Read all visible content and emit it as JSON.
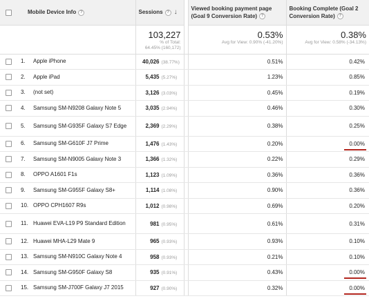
{
  "headers": {
    "device": "Mobile Device Info",
    "sessions": "Sessions",
    "goal9": "Viewed booking payment page (Goal 9 Conversion Rate)",
    "goal2": "Booking Complete (Goal 2 Conversion Rate)"
  },
  "icons": {
    "help": "question-mark-circle-icon",
    "sort": "arrow-down-icon"
  },
  "summary": {
    "sessions_total": "103,227",
    "sessions_sub1": "% of Total:",
    "sessions_sub2": "64.45% (160,172)",
    "goal9_rate": "0.53%",
    "goal9_sub": "Avg for View: 0.90% (-41.20%)",
    "goal2_rate": "0.38%",
    "goal2_sub": "Avg for View: 0.58% (-34.13%)"
  },
  "rows": [
    {
      "num": "1.",
      "device": "Apple iPhone",
      "sessions": "40,026",
      "pct": "(38.77%)",
      "goal9": "0.51%",
      "goal2": "0.42%"
    },
    {
      "num": "2.",
      "device": "Apple iPad",
      "sessions": "5,435",
      "pct": "(5.27%)",
      "goal9": "1.23%",
      "goal2": "0.85%"
    },
    {
      "num": "3.",
      "device": "(not set)",
      "sessions": "3,126",
      "pct": "(3.03%)",
      "goal9": "0.45%",
      "goal2": "0.19%"
    },
    {
      "num": "4.",
      "device": "Samsung SM-N9208 Galaxy Note 5",
      "sessions": "3,035",
      "pct": "(2.94%)",
      "goal9": "0.46%",
      "goal2": "0.30%"
    },
    {
      "num": "5.",
      "device": "Samsung SM-G935F Galaxy S7 Edge",
      "sessions": "2,369",
      "pct": "(2.29%)",
      "goal9": "0.38%",
      "goal2": "0.25%"
    },
    {
      "num": "6.",
      "device": "Samsung SM-G610F J7 Prime",
      "sessions": "1,476",
      "pct": "(1.43%)",
      "goal9": "0.20%",
      "goal2": "0.00%"
    },
    {
      "num": "7.",
      "device": "Samsung SM-N9005 Galaxy Note 3",
      "sessions": "1,366",
      "pct": "(1.32%)",
      "goal9": "0.22%",
      "goal2": "0.29%"
    },
    {
      "num": "8.",
      "device": "OPPO A1601 F1s",
      "sessions": "1,123",
      "pct": "(1.09%)",
      "goal9": "0.36%",
      "goal2": "0.36%"
    },
    {
      "num": "9.",
      "device": "Samsung SM-G955F Galaxy S8+",
      "sessions": "1,114",
      "pct": "(1.08%)",
      "goal9": "0.90%",
      "goal2": "0.36%"
    },
    {
      "num": "10.",
      "device": "OPPO CPH1607 R9s",
      "sessions": "1,012",
      "pct": "(0.98%)",
      "goal9": "0.69%",
      "goal2": "0.20%"
    },
    {
      "num": "11.",
      "device": "Huawei EVA-L19 P9 Standard Edition",
      "sessions": "981",
      "pct": "(0.95%)",
      "goal9": "0.61%",
      "goal2": "0.31%"
    },
    {
      "num": "12.",
      "device": "Huawei MHA-L29 Mate 9",
      "sessions": "965",
      "pct": "(0.93%)",
      "goal9": "0.93%",
      "goal2": "0.10%"
    },
    {
      "num": "13.",
      "device": "Samsung SM-N910C Galaxy Note 4",
      "sessions": "958",
      "pct": "(0.93%)",
      "goal9": "0.21%",
      "goal2": "0.10%"
    },
    {
      "num": "14.",
      "device": "Samsung SM-G950F Galaxy S8",
      "sessions": "935",
      "pct": "(0.91%)",
      "goal9": "0.43%",
      "goal2": "0.00%"
    },
    {
      "num": "15.",
      "device": "Samsung SM-J700F Galaxy J7 2015",
      "sessions": "927",
      "pct": "(0.90%)",
      "goal9": "0.32%",
      "goal2": "0.00%"
    }
  ],
  "colors": {
    "annotation_underline": "#b3261e",
    "header_bg": "#f1f1f1"
  }
}
